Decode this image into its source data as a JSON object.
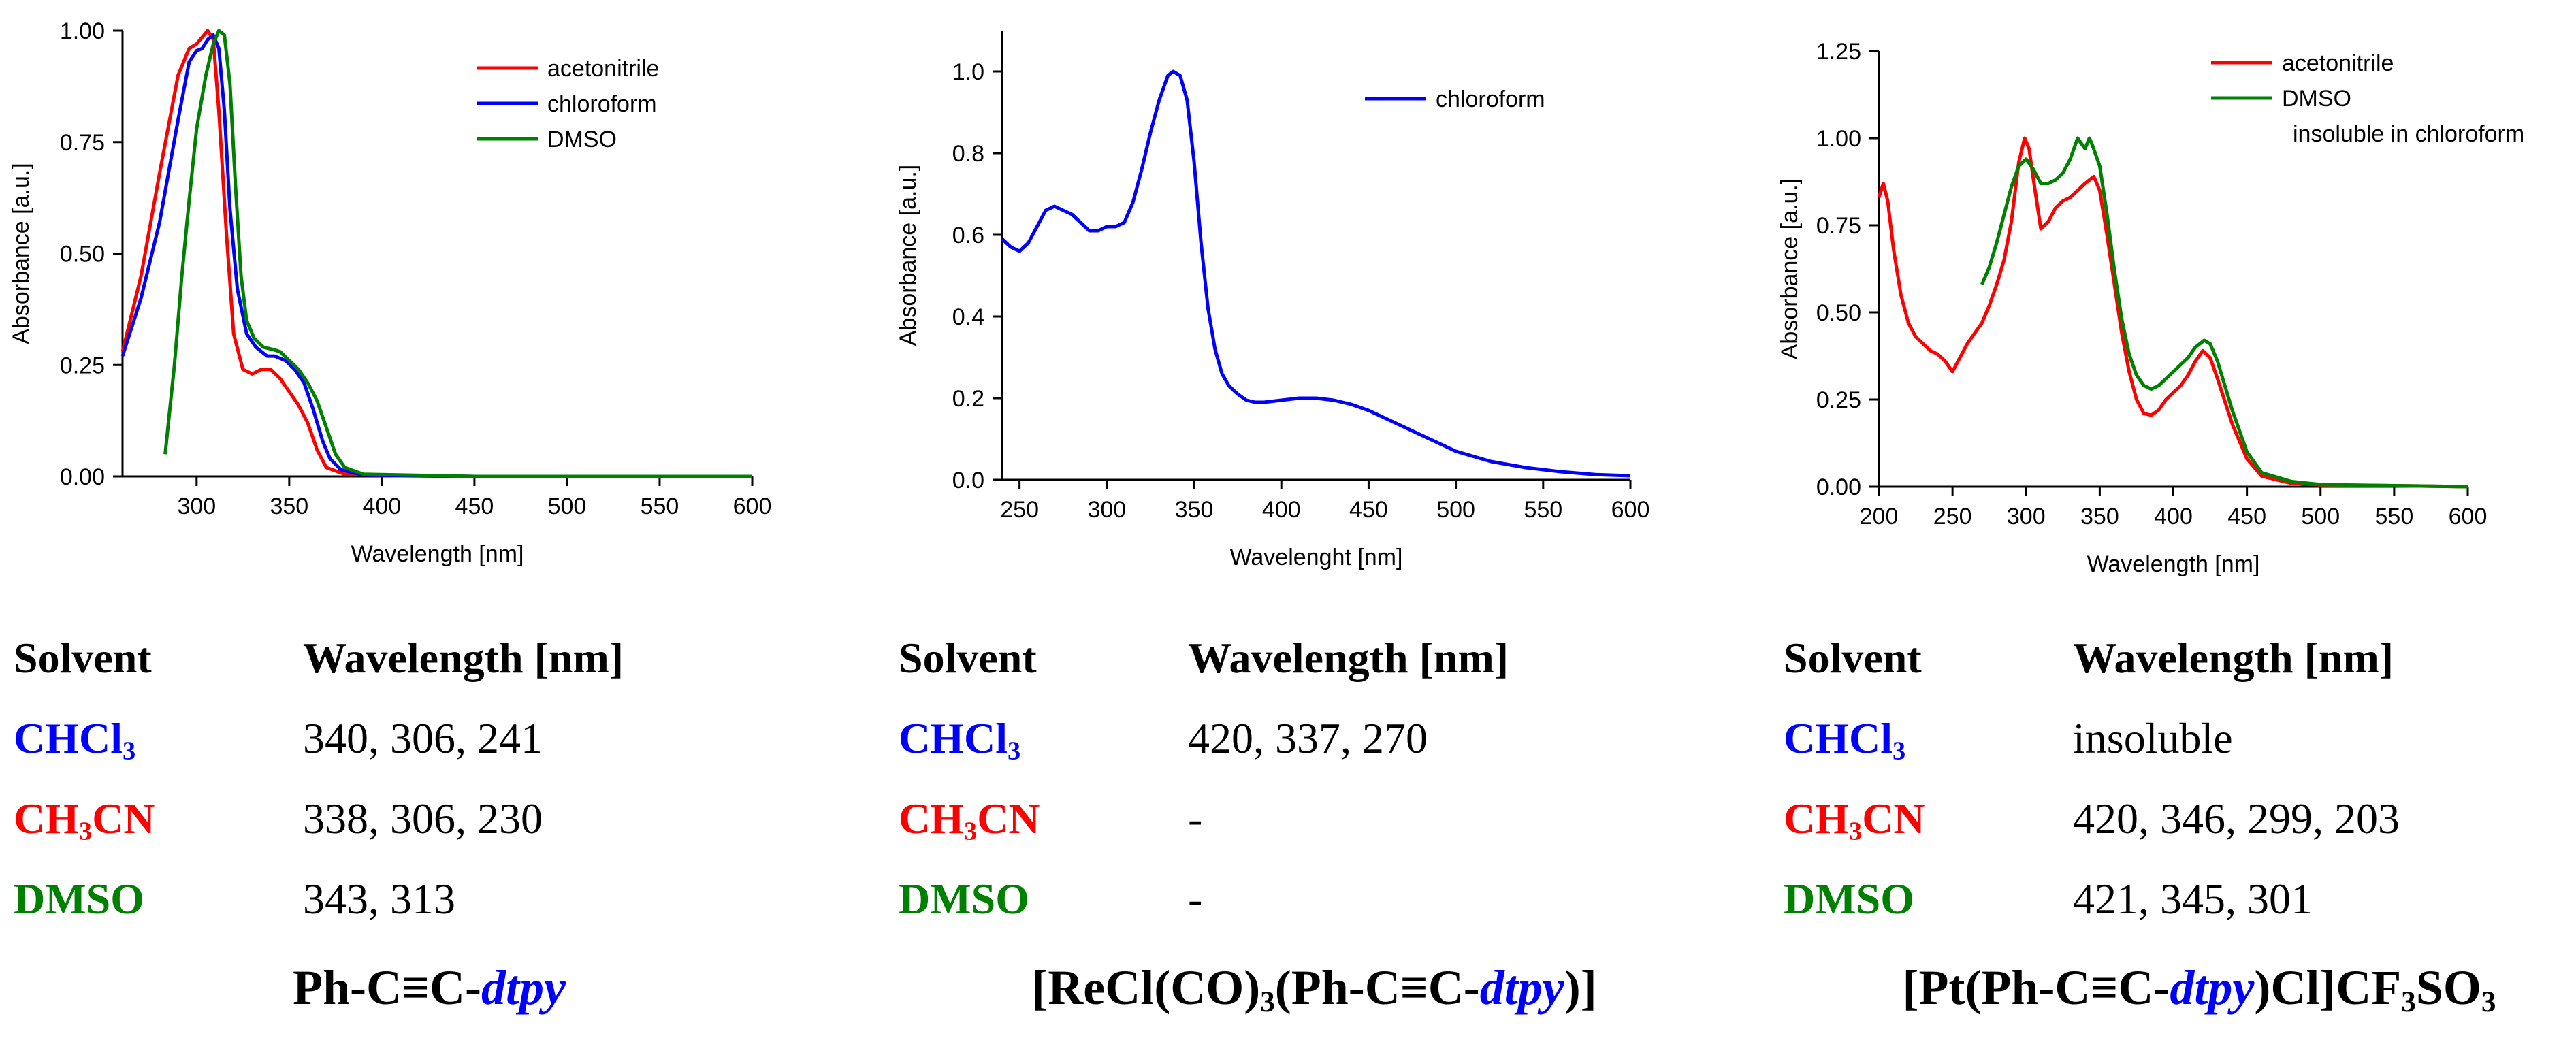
{
  "colors": {
    "acetonitrile": "#ff0000",
    "chloroform": "#0000ff",
    "dmso": "#008000"
  },
  "chart_data": [
    {
      "type": "line",
      "xlabel": "Wavelength [nm]",
      "ylabel": "Absorbance [a.u.]",
      "xlim": [
        260,
        600
      ],
      "ylim": [
        0,
        1.0
      ],
      "xticks": [
        300,
        350,
        400,
        450,
        500,
        550,
        600
      ],
      "yticks": [
        0.0,
        0.25,
        0.5,
        0.75,
        1.0
      ],
      "ytick_labels": [
        "0.00",
        "0.25",
        "0.50",
        "0.75",
        "1.00"
      ],
      "legend": [
        "acetonitrile",
        "chloroform",
        "DMSO"
      ],
      "series": [
        {
          "name": "acetonitrile",
          "color": "#ff0000",
          "x": [
            260,
            270,
            280,
            290,
            296,
            300,
            304,
            306,
            309,
            312,
            316,
            320,
            325,
            330,
            335,
            340,
            345,
            350,
            355,
            360,
            365,
            370,
            380,
            400,
            450,
            500,
            600
          ],
          "y": [
            0.28,
            0.45,
            0.68,
            0.9,
            0.96,
            0.97,
            0.99,
            1.0,
            0.98,
            0.82,
            0.55,
            0.32,
            0.24,
            0.23,
            0.24,
            0.24,
            0.22,
            0.19,
            0.16,
            0.12,
            0.06,
            0.02,
            0.005,
            0.002,
            0.0,
            0.0,
            0.0
          ]
        },
        {
          "name": "chloroform",
          "color": "#0000ff",
          "x": [
            260,
            270,
            280,
            290,
            296,
            300,
            303,
            306,
            309,
            312,
            315,
            318,
            322,
            327,
            332,
            338,
            342,
            348,
            353,
            358,
            363,
            368,
            372,
            378,
            390,
            450,
            500,
            600
          ],
          "y": [
            0.27,
            0.4,
            0.57,
            0.8,
            0.93,
            0.955,
            0.96,
            0.98,
            0.99,
            0.96,
            0.82,
            0.6,
            0.42,
            0.32,
            0.29,
            0.27,
            0.27,
            0.26,
            0.24,
            0.21,
            0.15,
            0.08,
            0.04,
            0.015,
            0.003,
            0.0,
            0.0,
            0.0
          ]
        },
        {
          "name": "DMSO",
          "color": "#008000",
          "x": [
            283,
            288,
            292,
            296,
            300,
            305,
            309,
            312,
            315,
            318,
            321,
            324,
            327,
            331,
            336,
            341,
            345,
            350,
            355,
            360,
            365,
            370,
            375,
            380,
            390,
            450,
            500,
            600
          ],
          "y": [
            0.05,
            0.25,
            0.45,
            0.62,
            0.78,
            0.9,
            0.97,
            1.0,
            0.99,
            0.88,
            0.65,
            0.45,
            0.35,
            0.31,
            0.29,
            0.285,
            0.28,
            0.26,
            0.24,
            0.21,
            0.17,
            0.11,
            0.05,
            0.02,
            0.005,
            0.0,
            0.0,
            0.0
          ]
        }
      ]
    },
    {
      "type": "line",
      "xlabel": "Wavelenght [nm]",
      "ylabel": "Absorbance [a.u.]",
      "xlim": [
        240,
        600
      ],
      "ylim": [
        0,
        1.1
      ],
      "xticks": [
        250,
        300,
        350,
        400,
        450,
        500,
        550,
        600
      ],
      "yticks": [
        0.0,
        0.2,
        0.4,
        0.6,
        0.8,
        1.0
      ],
      "ytick_labels": [
        "0.0",
        "0.2",
        "0.4",
        "0.6",
        "0.8",
        "1.0"
      ],
      "legend": [
        "chloroform"
      ],
      "series": [
        {
          "name": "chloroform",
          "color": "#0000ff",
          "x": [
            240,
            245,
            250,
            255,
            260,
            265,
            270,
            275,
            280,
            285,
            290,
            295,
            300,
            305,
            310,
            315,
            320,
            325,
            330,
            335,
            338,
            342,
            346,
            350,
            354,
            358,
            362,
            366,
            370,
            375,
            380,
            385,
            390,
            400,
            410,
            420,
            430,
            440,
            450,
            460,
            470,
            480,
            490,
            500,
            520,
            540,
            560,
            580,
            600
          ],
          "y": [
            0.59,
            0.57,
            0.56,
            0.58,
            0.62,
            0.66,
            0.67,
            0.66,
            0.65,
            0.63,
            0.61,
            0.61,
            0.62,
            0.62,
            0.63,
            0.68,
            0.76,
            0.85,
            0.93,
            0.99,
            1.0,
            0.99,
            0.93,
            0.78,
            0.58,
            0.42,
            0.32,
            0.26,
            0.23,
            0.21,
            0.195,
            0.19,
            0.19,
            0.195,
            0.2,
            0.2,
            0.195,
            0.185,
            0.17,
            0.15,
            0.13,
            0.11,
            0.09,
            0.07,
            0.045,
            0.03,
            0.02,
            0.013,
            0.01
          ]
        }
      ]
    },
    {
      "type": "line",
      "xlabel": "Wavelength [nm]",
      "ylabel": "Absorbance [a.u.]",
      "xlim": [
        200,
        600
      ],
      "ylim": [
        0,
        1.25
      ],
      "xticks": [
        200,
        250,
        300,
        350,
        400,
        450,
        500,
        550,
        600
      ],
      "yticks": [
        0.0,
        0.25,
        0.5,
        0.75,
        1.0,
        1.25
      ],
      "ytick_labels": [
        "0.00",
        "0.25",
        "0.50",
        "0.75",
        "1.00",
        "1.25"
      ],
      "legend": [
        "acetonitrile",
        "DMSO"
      ],
      "legend_note": "insoluble in chloroform",
      "series": [
        {
          "name": "acetonitrile",
          "color": "#ff0000",
          "x": [
            200,
            203,
            206,
            210,
            215,
            220,
            225,
            230,
            235,
            240,
            245,
            250,
            255,
            260,
            265,
            270,
            275,
            280,
            285,
            290,
            295,
            299,
            302,
            305,
            310,
            315,
            320,
            325,
            330,
            335,
            340,
            346,
            350,
            355,
            360,
            365,
            370,
            375,
            380,
            385,
            390,
            395,
            400,
            405,
            410,
            415,
            420,
            425,
            430,
            440,
            450,
            460,
            480,
            500,
            550,
            600
          ],
          "y": [
            0.83,
            0.87,
            0.82,
            0.68,
            0.55,
            0.47,
            0.43,
            0.41,
            0.39,
            0.38,
            0.36,
            0.33,
            0.37,
            0.41,
            0.44,
            0.47,
            0.52,
            0.58,
            0.65,
            0.76,
            0.93,
            1.0,
            0.97,
            0.88,
            0.74,
            0.76,
            0.8,
            0.82,
            0.83,
            0.85,
            0.87,
            0.89,
            0.85,
            0.72,
            0.58,
            0.44,
            0.33,
            0.25,
            0.21,
            0.205,
            0.22,
            0.25,
            0.27,
            0.29,
            0.32,
            0.36,
            0.39,
            0.37,
            0.31,
            0.18,
            0.08,
            0.03,
            0.01,
            0.005,
            0.003,
            0.0
          ]
        },
        {
          "name": "DMSO",
          "color": "#008000",
          "x": [
            270,
            275,
            280,
            285,
            290,
            295,
            300,
            305,
            310,
            315,
            320,
            325,
            330,
            335,
            340,
            343,
            345,
            350,
            355,
            360,
            365,
            370,
            375,
            380,
            385,
            390,
            395,
            400,
            405,
            410,
            415,
            421,
            425,
            430,
            440,
            450,
            460,
            480,
            500,
            550,
            600
          ],
          "y": [
            0.58,
            0.63,
            0.7,
            0.78,
            0.86,
            0.92,
            0.94,
            0.91,
            0.87,
            0.87,
            0.88,
            0.9,
            0.94,
            1.0,
            0.97,
            1.0,
            0.98,
            0.92,
            0.78,
            0.62,
            0.48,
            0.38,
            0.32,
            0.29,
            0.28,
            0.29,
            0.31,
            0.33,
            0.35,
            0.37,
            0.4,
            0.42,
            0.41,
            0.36,
            0.22,
            0.1,
            0.04,
            0.015,
            0.006,
            0.003,
            0.0
          ]
        }
      ]
    }
  ],
  "tables": [
    {
      "header": {
        "solvent": "Solvent",
        "wavelength": "Wavelength [nm]"
      },
      "rows": [
        {
          "solvent": "CHCl",
          "solvent_sub": "3",
          "solvent_tail": "",
          "values": "340, 306, 241",
          "color": "#0000ff"
        },
        {
          "solvent": "CH",
          "solvent_sub": "3",
          "solvent_tail": "CN",
          "values": "338, 306, 230",
          "color": "#ff0000"
        },
        {
          "solvent": "DMSO",
          "solvent_sub": "",
          "solvent_tail": "",
          "values": "343, 313",
          "color": "#008000"
        }
      ],
      "compound": {
        "pre": "Ph-C≡C-",
        "italic": "dtpy",
        "post": ""
      }
    },
    {
      "header": {
        "solvent": "Solvent",
        "wavelength": "Wavelength [nm]"
      },
      "rows": [
        {
          "solvent": "CHCl",
          "solvent_sub": "3",
          "solvent_tail": "",
          "values": "420, 337, 270",
          "color": "#0000ff"
        },
        {
          "solvent": "CH",
          "solvent_sub": "3",
          "solvent_tail": "CN",
          "values": "-",
          "color": "#ff0000"
        },
        {
          "solvent": "DMSO",
          "solvent_sub": "",
          "solvent_tail": "",
          "values": "-",
          "color": "#008000"
        }
      ],
      "compound": {
        "pre": "[ReCl(CO)",
        "pre_sub": "3",
        "pre2": "(Ph-C≡C-",
        "italic": "dtpy",
        "post": ")]"
      }
    },
    {
      "header": {
        "solvent": "Solvent",
        "wavelength": "Wavelength [nm]"
      },
      "rows": [
        {
          "solvent": "CHCl",
          "solvent_sub": "3",
          "solvent_tail": "",
          "values": "insoluble",
          "color": "#0000ff"
        },
        {
          "solvent": "CH",
          "solvent_sub": "3",
          "solvent_tail": "CN",
          "values": "420, 346, 299, 203",
          "color": "#ff0000"
        },
        {
          "solvent": "DMSO",
          "solvent_sub": "",
          "solvent_tail": "",
          "values": "421, 345, 301",
          "color": "#008000"
        }
      ],
      "compound": {
        "pre": "[Pt(Ph-C≡C-",
        "italic": "dtpy",
        "post": ")Cl]CF",
        "post_sub": "3",
        "post2": "SO",
        "post_sub2": "3"
      }
    }
  ]
}
